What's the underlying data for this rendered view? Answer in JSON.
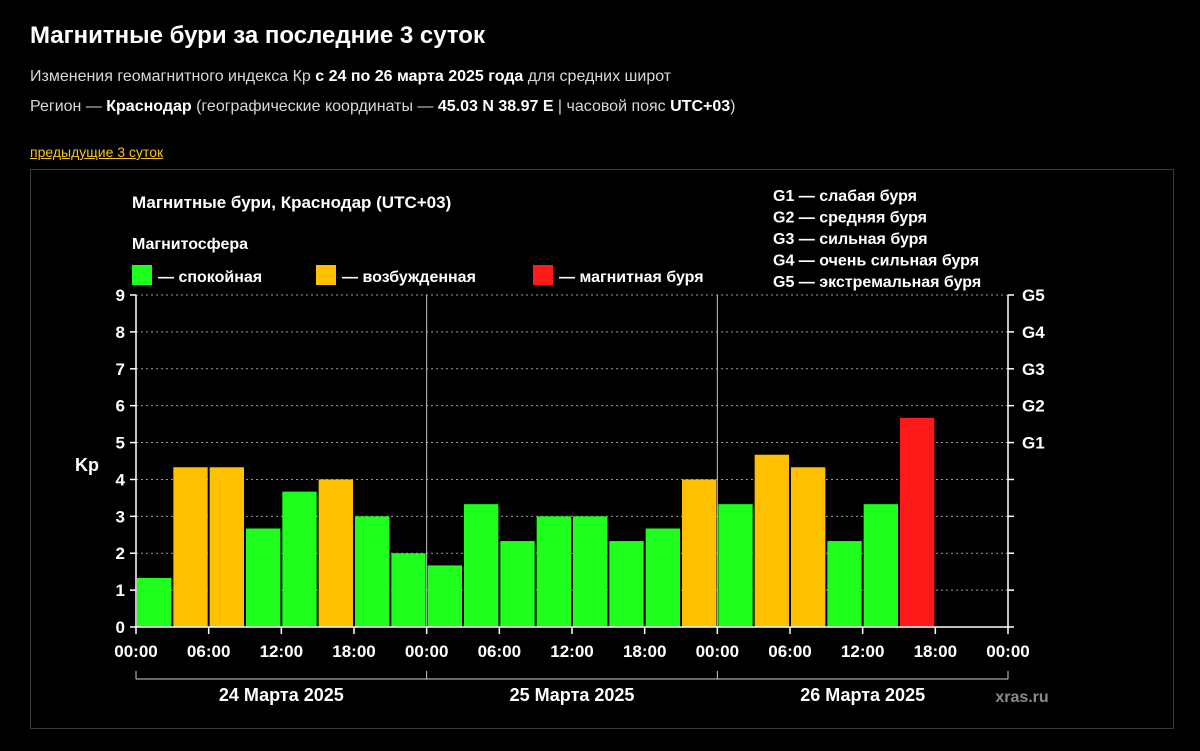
{
  "header": {
    "title": "Магнитные бури за последние 3 суток",
    "line1": {
      "prefix": "Изменения геомагнитного индекса Кр ",
      "bold": "с 24 по 26 марта 2025 года",
      "suffix": " для средних широт"
    },
    "line2": {
      "prefix": "Регион — ",
      "region": "Краснодар",
      "mid": " (географические координаты — ",
      "coords": "45.03 N 38.97 E",
      "mid2": " | часовой пояс ",
      "tz": "UTC+03",
      "suffix": ")"
    },
    "prev_link": "предыдущие 3 суток"
  },
  "chart_data": {
    "type": "bar",
    "title": "Магнитные бури, Краснодар (UTC+03)",
    "legend_title": "Магнитосфера",
    "legend": [
      {
        "key": "calm",
        "label": "— спокойная",
        "color": "#1eff1e"
      },
      {
        "key": "excited",
        "label": "— возбужденная",
        "color": "#ffc000"
      },
      {
        "key": "storm",
        "label": "— магнитная буря",
        "color": "#ff1a1a"
      }
    ],
    "g_scale": [
      "G1 — слабая буря",
      "G2 — средняя буря",
      "G3 — сильная буря",
      "G4 — очень сильная буря",
      "G5 — экстремальная буря"
    ],
    "ylabel": "Kp",
    "ylim": [
      0,
      9
    ],
    "y_ticks": [
      "0",
      "1",
      "2",
      "3",
      "4",
      "5",
      "6",
      "7",
      "8",
      "9"
    ],
    "right_ticks": [
      {
        "value": 5,
        "label": "G1"
      },
      {
        "value": 6,
        "label": "G2"
      },
      {
        "value": 7,
        "label": "G3"
      },
      {
        "value": 8,
        "label": "G4"
      },
      {
        "value": 9,
        "label": "G5"
      }
    ],
    "x_tick_labels": [
      "00:00",
      "06:00",
      "12:00",
      "18:00",
      "00:00",
      "06:00",
      "12:00",
      "18:00",
      "00:00",
      "06:00",
      "12:00",
      "18:00",
      "00:00"
    ],
    "days": [
      "24 Марта 2025",
      "25 Марта 2025",
      "26 Марта 2025"
    ],
    "intervals_per_day": 8,
    "values": [
      1.33,
      4.33,
      4.33,
      2.67,
      3.67,
      4.0,
      3.0,
      2.0,
      1.67,
      3.33,
      2.33,
      3.0,
      3.0,
      2.33,
      2.67,
      4.0,
      3.33,
      4.67,
      4.33,
      2.33,
      3.33,
      5.67
    ],
    "levels": [
      "calm",
      "excited",
      "excited",
      "calm",
      "calm",
      "excited",
      "calm",
      "calm",
      "calm",
      "calm",
      "calm",
      "calm",
      "calm",
      "calm",
      "calm",
      "excited",
      "calm",
      "excited",
      "excited",
      "calm",
      "calm",
      "storm"
    ],
    "grid": "dotted horizontal",
    "watermark": "xras.ru"
  }
}
